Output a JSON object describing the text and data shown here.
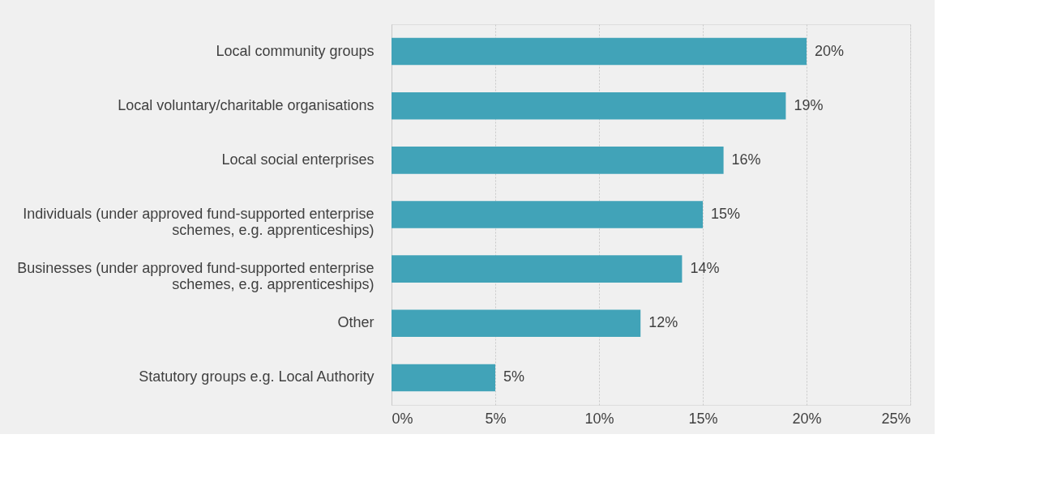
{
  "chart_data": {
    "type": "bar",
    "orientation": "horizontal",
    "categories": [
      "Local community groups",
      "Local voluntary/charitable organisations",
      "Local social enterprises",
      "Individuals (under approved fund-supported enterprise schemes, e.g. apprenticeships)",
      "Businesses (under approved fund-supported enterprise schemes, e.g. apprenticeships)",
      "Other",
      "Statutory groups e.g. Local Authority"
    ],
    "values": [
      20,
      19,
      16,
      15,
      14,
      12,
      5
    ],
    "value_labels": [
      "20%",
      "19%",
      "16%",
      "15%",
      "14%",
      "12%",
      "5%"
    ],
    "color": "#41a3b8",
    "xlim": [
      0,
      25
    ],
    "xticks": [
      {
        "value": 0,
        "label": "0%"
      },
      {
        "value": 5,
        "label": "5%"
      },
      {
        "value": 10,
        "label": "10%"
      },
      {
        "value": 15,
        "label": "15%"
      },
      {
        "value": 20,
        "label": "20%"
      },
      {
        "value": 25,
        "label": "25%"
      }
    ],
    "grid": "x"
  }
}
